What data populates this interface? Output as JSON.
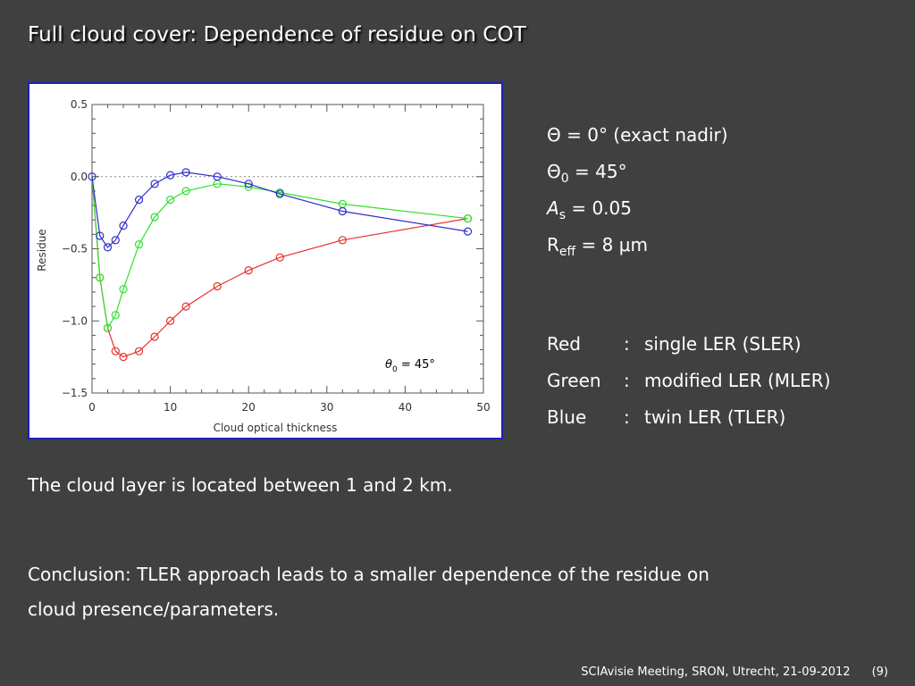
{
  "slide": {
    "title": "Full cloud cover: Dependence of residue on COT",
    "params": {
      "theta": "Θ = 0° (exact nadir)",
      "theta0_sym": "Θ",
      "theta0_sub": "0",
      "theta0_val": " = 45°",
      "as_sym": "A",
      "as_sub": "s",
      "as_val": " = 0.05",
      "reff_sym": "R",
      "reff_sub": "eff",
      "reff_val": " = 8 μm"
    },
    "legend": [
      {
        "color": "Red",
        "sep": ":",
        "desc": "single LER (SLER)"
      },
      {
        "color": "Green",
        "sep": ":",
        "desc": "modified LER (MLER)"
      },
      {
        "color": "Blue",
        "sep": ":",
        "desc": "twin LER (TLER)"
      }
    ],
    "cloud_note": "The cloud layer is located between 1 and 2 km.",
    "conclusion_line1": "Conclusion: TLER approach leads to a smaller dependence of the residue on",
    "conclusion_line2": "cloud presence/parameters.",
    "footer": "SCIAvisie Meeting, SRON, Utrecht, 21-09-2012",
    "page": "(9)"
  },
  "chart_data": {
    "type": "line",
    "xlabel": "Cloud optical thickness",
    "ylabel": "Residue",
    "xlim": [
      0,
      50
    ],
    "ylim": [
      -1.5,
      0.5
    ],
    "xticks": [
      0,
      10,
      20,
      30,
      40,
      50
    ],
    "yticks": [
      0.5,
      0.0,
      -0.5,
      -1.0,
      -1.5
    ],
    "ytick_labels": [
      "0.5",
      "0.0",
      "−0.5",
      "−1.0",
      "−1.5"
    ],
    "reference_line": 0.0,
    "annotation": {
      "symbol": "θ",
      "sub": "0",
      "text": " = 45°"
    },
    "colors": {
      "red": "#e8322d",
      "green": "#2fe02f",
      "blue": "#2f2fc8"
    },
    "series": [
      {
        "key": "red",
        "x": [
          0,
          1,
          2,
          3,
          4,
          6,
          8,
          10,
          12,
          16,
          20,
          24,
          32,
          48
        ],
        "y": [
          0.0,
          -0.7,
          -1.05,
          -1.21,
          -1.25,
          -1.21,
          -1.11,
          -1.0,
          -0.9,
          -0.76,
          -0.65,
          -0.56,
          -0.44,
          -0.29
        ]
      },
      {
        "key": "green",
        "x": [
          0,
          1,
          2,
          3,
          4,
          6,
          8,
          10,
          12,
          16,
          20,
          24,
          32,
          48
        ],
        "y": [
          0.0,
          -0.7,
          -1.05,
          -0.96,
          -0.78,
          -0.47,
          -0.28,
          -0.16,
          -0.1,
          -0.05,
          -0.07,
          -0.11,
          -0.19,
          -0.29
        ]
      },
      {
        "key": "blue",
        "x": [
          0,
          1,
          2,
          3,
          4,
          6,
          8,
          10,
          12,
          16,
          20,
          24,
          32,
          48
        ],
        "y": [
          0.0,
          -0.41,
          -0.49,
          -0.44,
          -0.34,
          -0.16,
          -0.05,
          0.01,
          0.03,
          0.0,
          -0.05,
          -0.12,
          -0.24,
          -0.38
        ]
      }
    ]
  }
}
